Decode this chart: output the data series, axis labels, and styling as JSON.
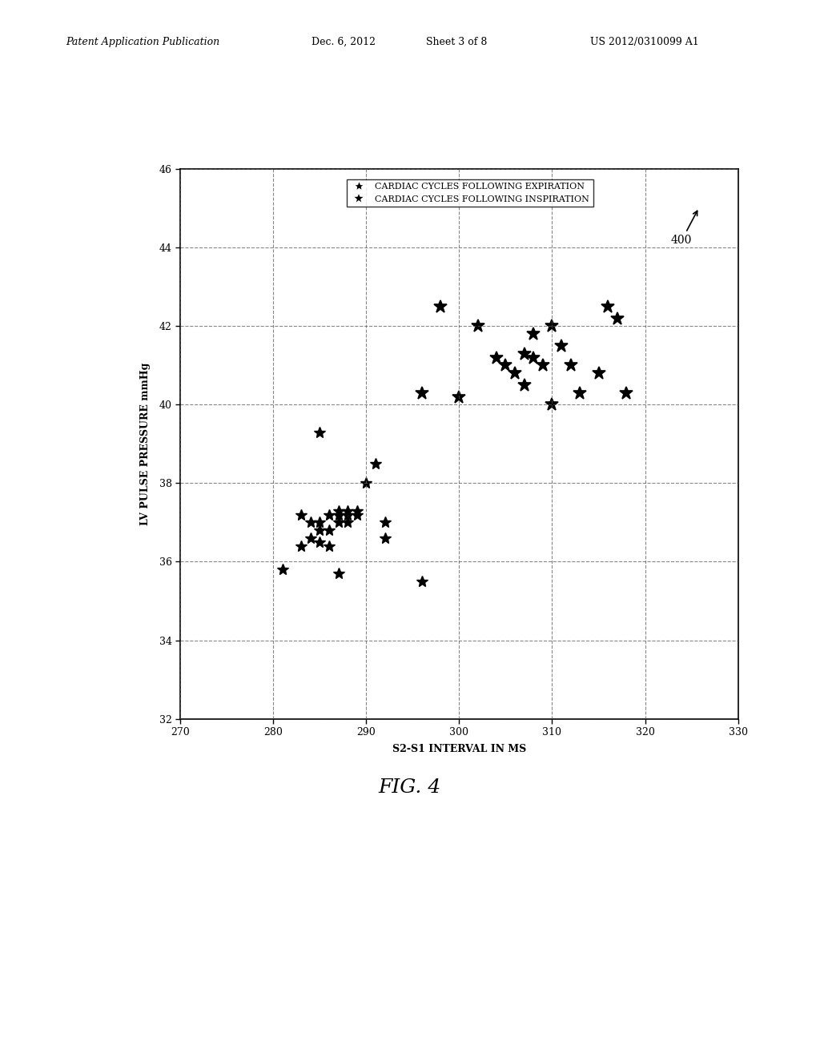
{
  "title_header": "Patent Application Publication",
  "title_date": "Dec. 6, 2012",
  "title_sheet": "Sheet 3 of 8",
  "title_patent": "US 2012/0310099 A1",
  "fig_label": "FIG. 4",
  "annotation_label": "400",
  "xlabel": "S2-S1 INTERVAL IN MS",
  "ylabel": "LV PULSE PRESSURE mmHg",
  "xlim": [
    270,
    330
  ],
  "ylim": [
    32,
    46
  ],
  "xticks": [
    270,
    280,
    290,
    300,
    310,
    320,
    330
  ],
  "yticks": [
    32,
    34,
    36,
    38,
    40,
    42,
    44,
    46
  ],
  "legend_expiration": "CARDIAC CYCLES FOLLOWING EXPIRATION",
  "legend_inspiration": "CARDIAC CYCLES FOLLOWING INSPIRATION",
  "expiration_x": [
    281,
    283,
    283,
    284,
    284,
    285,
    285,
    285,
    286,
    286,
    286,
    287,
    287,
    287,
    288,
    288,
    288,
    289,
    289,
    290,
    291,
    292,
    292,
    296,
    285,
    287
  ],
  "expiration_y": [
    35.8,
    37.2,
    36.4,
    37.0,
    36.6,
    37.0,
    36.8,
    36.5,
    37.2,
    36.8,
    36.4,
    37.3,
    37.2,
    37.0,
    37.3,
    37.2,
    37.0,
    37.2,
    37.3,
    38.0,
    38.5,
    37.0,
    36.6,
    35.5,
    39.3,
    35.7
  ],
  "inspiration_x": [
    296,
    298,
    300,
    302,
    304,
    305,
    306,
    307,
    307,
    308,
    308,
    309,
    310,
    310,
    311,
    312,
    313,
    315,
    316,
    317,
    318
  ],
  "inspiration_y": [
    40.3,
    42.5,
    40.2,
    42.0,
    41.2,
    41.0,
    40.8,
    41.3,
    40.5,
    41.8,
    41.2,
    41.0,
    42.0,
    40.0,
    41.5,
    41.0,
    40.3,
    40.8,
    42.5,
    42.2,
    40.3
  ],
  "background_color": "#ffffff",
  "plot_bg_color": "#ffffff",
  "grid_color": "#555555",
  "marker_color": "#000000",
  "border_color": "#000000",
  "fontsize_header": 9,
  "fontsize_axis_label": 9,
  "fontsize_tick": 9,
  "fontsize_legend": 8,
  "fontsize_fig_label": 18,
  "fontsize_annotation": 10
}
